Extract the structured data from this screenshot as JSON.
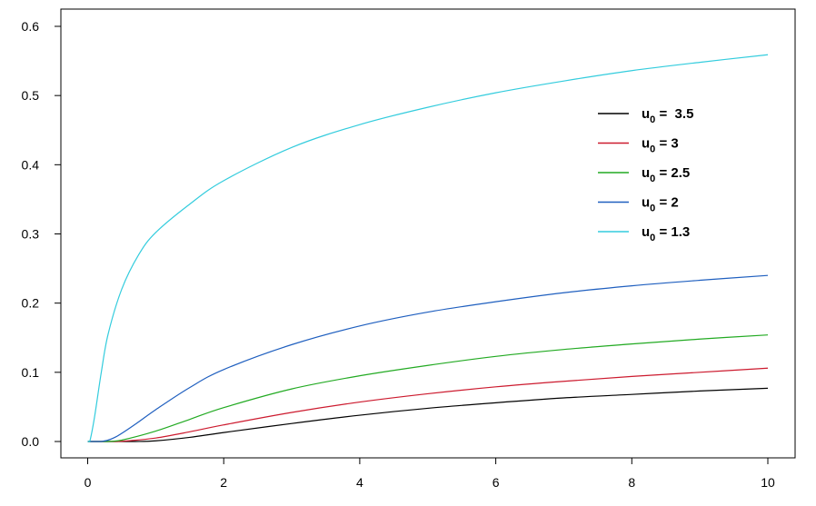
{
  "chart_data": {
    "type": "line",
    "title": "",
    "xlabel": "",
    "ylabel": "",
    "xlim": [
      0,
      10
    ],
    "ylim": [
      0,
      0.6
    ],
    "x_ticks": [
      0,
      2,
      4,
      6,
      8,
      10
    ],
    "y_ticks": [
      0.0,
      0.1,
      0.2,
      0.3,
      0.4,
      0.5,
      0.6
    ],
    "x_tick_labels": [
      "0",
      "2",
      "4",
      "6",
      "8",
      "10"
    ],
    "y_tick_labels": [
      "0.0",
      "0.1",
      "0.2",
      "0.3",
      "0.4",
      "0.5",
      "0.6"
    ],
    "grid": false,
    "legend_position": "right",
    "series": [
      {
        "name": "u0 = 3.5",
        "label_main": "u",
        "label_sub": "0",
        "label_rest": " =  3.5",
        "color": "#000000",
        "points": [
          [
            0,
            0
          ],
          [
            0.5,
            0
          ],
          [
            0.7,
            0
          ],
          [
            1,
            0.001
          ],
          [
            1.5,
            0.006
          ],
          [
            2,
            0.013
          ],
          [
            3,
            0.026
          ],
          [
            4,
            0.038
          ],
          [
            5,
            0.048
          ],
          [
            6,
            0.056
          ],
          [
            7,
            0.063
          ],
          [
            8,
            0.068
          ],
          [
            9,
            0.073
          ],
          [
            10,
            0.077
          ]
        ]
      },
      {
        "name": "u0 = 3",
        "label_main": "u",
        "label_sub": "0",
        "label_rest": " = 3",
        "color": "#cc1a2e",
        "points": [
          [
            0,
            0
          ],
          [
            0.4,
            0
          ],
          [
            0.6,
            0.001
          ],
          [
            1,
            0.005
          ],
          [
            1.5,
            0.014
          ],
          [
            2,
            0.024
          ],
          [
            3,
            0.042
          ],
          [
            4,
            0.057
          ],
          [
            5,
            0.069
          ],
          [
            6,
            0.079
          ],
          [
            7,
            0.087
          ],
          [
            8,
            0.094
          ],
          [
            9,
            0.1
          ],
          [
            10,
            0.106
          ]
        ]
      },
      {
        "name": "u0 = 2.5",
        "label_main": "u",
        "label_sub": "0",
        "label_rest": " = 2.5",
        "color": "#22aa22",
        "points": [
          [
            0,
            0
          ],
          [
            0.3,
            0
          ],
          [
            0.5,
            0.002
          ],
          [
            1,
            0.015
          ],
          [
            1.5,
            0.032
          ],
          [
            2,
            0.049
          ],
          [
            3,
            0.076
          ],
          [
            4,
            0.095
          ],
          [
            5,
            0.11
          ],
          [
            6,
            0.123
          ],
          [
            7,
            0.133
          ],
          [
            8,
            0.141
          ],
          [
            9,
            0.148
          ],
          [
            10,
            0.154
          ]
        ]
      },
      {
        "name": "u0 = 2",
        "label_main": "u",
        "label_sub": "0",
        "label_rest": " = 2",
        "color": "#1f5fbf",
        "points": [
          [
            0,
            0
          ],
          [
            0.2,
            0
          ],
          [
            0.4,
            0.006
          ],
          [
            0.7,
            0.025
          ],
          [
            1,
            0.046
          ],
          [
            1.5,
            0.078
          ],
          [
            2,
            0.104
          ],
          [
            3,
            0.14
          ],
          [
            4,
            0.167
          ],
          [
            5,
            0.187
          ],
          [
            6,
            0.202
          ],
          [
            7,
            0.215
          ],
          [
            8,
            0.225
          ],
          [
            9,
            0.233
          ],
          [
            10,
            0.24
          ]
        ]
      },
      {
        "name": "u0 = 1.3",
        "label_main": "u",
        "label_sub": "0",
        "label_rest": " = 1.3",
        "color": "#33ccdd",
        "points": [
          [
            0,
            0
          ],
          [
            0.03,
            0
          ],
          [
            0.1,
            0.035
          ],
          [
            0.2,
            0.1
          ],
          [
            0.3,
            0.155
          ],
          [
            0.5,
            0.22
          ],
          [
            0.75,
            0.27
          ],
          [
            1,
            0.302
          ],
          [
            1.5,
            0.343
          ],
          [
            2,
            0.377
          ],
          [
            3,
            0.425
          ],
          [
            4,
            0.458
          ],
          [
            5,
            0.483
          ],
          [
            6,
            0.504
          ],
          [
            7,
            0.521
          ],
          [
            8,
            0.536
          ],
          [
            9,
            0.548
          ],
          [
            10,
            0.559
          ]
        ]
      }
    ]
  }
}
